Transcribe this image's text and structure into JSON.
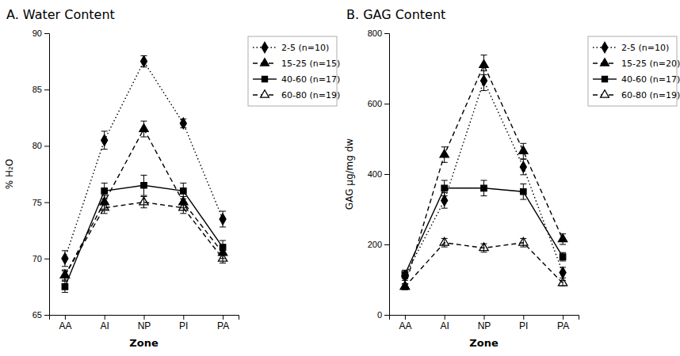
{
  "chart_data": [
    {
      "type": "line",
      "title": "A. Water Content",
      "xlabel": "Zone",
      "ylabel": "% H₂O",
      "categories": [
        "AA",
        "AI",
        "NP",
        "PI",
        "PA"
      ],
      "ylim": [
        65,
        90
      ],
      "yticks": [
        65,
        70,
        75,
        80,
        85,
        90
      ],
      "grid": false,
      "legend": "right",
      "series": [
        {
          "name": "2-5 (n=10)",
          "values": [
            70.0,
            80.5,
            87.5,
            82.0,
            73.5
          ],
          "errors": [
            0.7,
            0.8,
            0.5,
            0.4,
            0.7
          ],
          "marker": "diamond",
          "line_style": "dotted",
          "color": "black"
        },
        {
          "name": "15-25 (n=15)",
          "values": [
            68.5,
            75.0,
            81.5,
            75.0,
            70.5
          ],
          "errors": [
            0.5,
            0.6,
            0.7,
            0.5,
            0.5
          ],
          "marker": "triangle",
          "line_style": "dashed",
          "color": "black"
        },
        {
          "name": "40-60 (n=17)",
          "values": [
            67.5,
            76.0,
            76.5,
            76.0,
            71.0
          ],
          "errors": [
            0.5,
            0.7,
            0.9,
            0.7,
            0.6
          ],
          "marker": "square",
          "line_style": "solid",
          "color": "black"
        },
        {
          "name": "60-80 (n=19)",
          "values": [
            68.5,
            74.5,
            75.0,
            74.5,
            70.0
          ],
          "errors": [
            0.4,
            0.5,
            0.5,
            0.5,
            0.4
          ],
          "marker": "triangle-open",
          "line_style": "dashed",
          "color": "black"
        }
      ]
    },
    {
      "type": "line",
      "title": "B. GAG Content",
      "xlabel": "Zone",
      "ylabel": "GAG μg/mg dw",
      "categories": [
        "AA",
        "AI",
        "NP",
        "PI",
        "PA"
      ],
      "ylim": [
        0,
        800
      ],
      "yticks": [
        0,
        200,
        400,
        600,
        800
      ],
      "grid": false,
      "legend": "right",
      "series": [
        {
          "name": "2-5 (n=10)",
          "values": [
            110,
            325,
            665,
            420,
            120
          ],
          "errors": [
            12,
            22,
            28,
            22,
            15
          ],
          "marker": "diamond",
          "line_style": "dotted",
          "color": "black"
        },
        {
          "name": "15-25 (n=20)",
          "values": [
            80,
            455,
            710,
            465,
            215
          ],
          "errors": [
            8,
            22,
            28,
            22,
            15
          ],
          "marker": "triangle",
          "line_style": "dashed",
          "color": "black"
        },
        {
          "name": "40-60 (n=17)",
          "values": [
            115,
            360,
            360,
            350,
            165
          ],
          "errors": [
            12,
            22,
            22,
            22,
            12
          ],
          "marker": "square",
          "line_style": "solid",
          "color": "black"
        },
        {
          "name": "60-80 (n=19)",
          "values": [
            80,
            205,
            190,
            205,
            90
          ],
          "errors": [
            8,
            12,
            12,
            12,
            8
          ],
          "marker": "triangle-open",
          "line_style": "dashed",
          "color": "black"
        }
      ]
    }
  ]
}
